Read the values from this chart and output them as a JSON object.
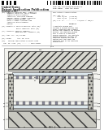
{
  "page_bg": "#ffffff",
  "text_color": "#222222",
  "barcode_color": "#111111",
  "diagram_bg": "#f8f8f5",
  "hatch_dark": "#444444",
  "line_color": "#333333"
}
